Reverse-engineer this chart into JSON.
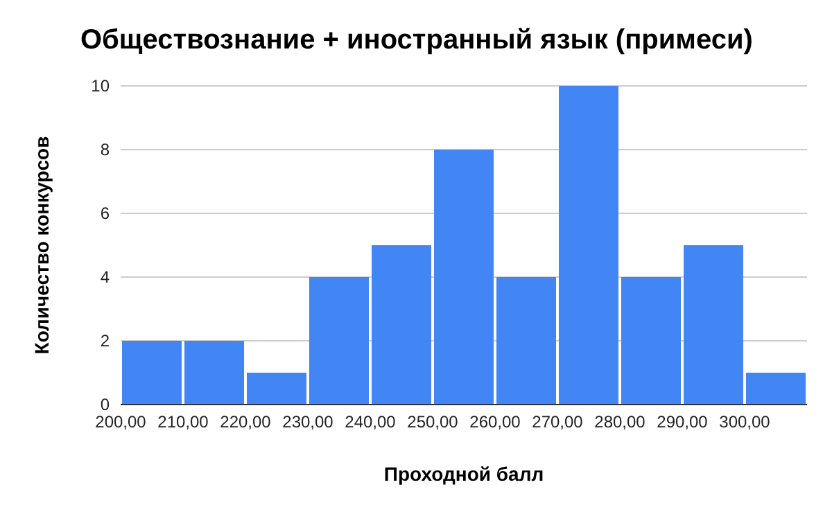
{
  "chart_data": {
    "type": "histogram",
    "title": "Обществознание + иностранный язык (примеси)",
    "xlabel": "Проходной балл",
    "ylabel": "Количество конкурсов",
    "bins": [
      200,
      210,
      220,
      230,
      240,
      250,
      260,
      270,
      280,
      290,
      300,
      310
    ],
    "values": [
      2,
      2,
      1,
      4,
      5,
      8,
      4,
      10,
      4,
      5,
      1
    ],
    "color": "#4285f4",
    "xlim": [
      200,
      310
    ],
    "xticks": [
      {
        "value": 200,
        "label": "200,00"
      },
      {
        "value": 210,
        "label": "210,00"
      },
      {
        "value": 220,
        "label": "220,00"
      },
      {
        "value": 230,
        "label": "230,00"
      },
      {
        "value": 240,
        "label": "240,00"
      },
      {
        "value": 250,
        "label": "250,00"
      },
      {
        "value": 260,
        "label": "260,00"
      },
      {
        "value": 270,
        "label": "270,00"
      },
      {
        "value": 280,
        "label": "280,00"
      },
      {
        "value": 290,
        "label": "290,00"
      },
      {
        "value": 300,
        "label": "300,00"
      }
    ],
    "ylim": [
      0,
      10
    ],
    "yticks": [
      0,
      2,
      4,
      6,
      8,
      10
    ],
    "grid": "y"
  }
}
